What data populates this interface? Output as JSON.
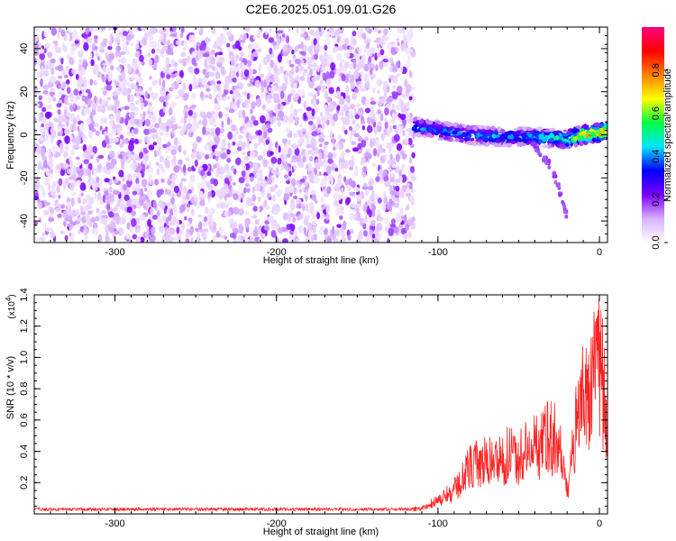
{
  "figure_title": "C2E6.2025.051.09.01.G26",
  "chart_data": [
    {
      "type": "heatmap",
      "title": "C2E6.2025.051.09.01.G26",
      "xlabel": "Height of straight line (km)",
      "ylabel": "Frequency (Hz)",
      "xlim": [
        -350,
        5
      ],
      "ylim": [
        -50,
        50
      ],
      "x_ticks": [
        -300,
        -200,
        -100,
        0
      ],
      "y_ticks": [
        -40,
        -20,
        0,
        20,
        40
      ],
      "noise_region_x": [
        -350,
        -115
      ],
      "signal_track": {
        "x": [
          -115,
          -100,
          -80,
          -60,
          -40,
          -20,
          -10,
          0,
          5
        ],
        "frequency": [
          4,
          2,
          0,
          -1,
          -1,
          -2,
          0,
          1,
          2
        ],
        "peak_amplitude": [
          0.45,
          0.45,
          0.45,
          0.45,
          0.5,
          0.6,
          0.85,
          0.95,
          0.95
        ]
      },
      "faint_branch": {
        "x": [
          -40,
          -30,
          -25,
          -20
        ],
        "frequency": [
          -6,
          -15,
          -25,
          -38
        ]
      },
      "colorbar": {
        "label": "Normalized spectral amplitude",
        "range": [
          0,
          1
        ],
        "ticks": [
          "0.0",
          "0.2",
          "0.4",
          "0.6",
          "0.8"
        ],
        "colors": [
          "#ffffff",
          "#d8b0ff",
          "#7a00ff",
          "#0000ff",
          "#00e5ff",
          "#00ff40",
          "#ffff00",
          "#ff8000",
          "#ff0000",
          "#ff0080"
        ]
      },
      "grid": false
    },
    {
      "type": "line",
      "xlabel": "Height of straight line (km)",
      "ylabel": "SNR (10 * v/v)",
      "y_multiplier_label": "(x10^4)",
      "xlim": [
        -350,
        5
      ],
      "ylim": [
        0,
        1.4
      ],
      "x_ticks": [
        -300,
        -200,
        -100,
        0
      ],
      "y_ticks": [
        0.2,
        0.4,
        0.6,
        0.8,
        1.0,
        1.2,
        1.4
      ],
      "line_color": "#ff2020",
      "envelope": {
        "x": [
          -350,
          -120,
          -110,
          -100,
          -90,
          -80,
          -70,
          -60,
          -50,
          -40,
          -30,
          -25,
          -20,
          -18,
          -15,
          -10,
          -5,
          0,
          3,
          5
        ],
        "y": [
          0.03,
          0.04,
          0.05,
          0.12,
          0.2,
          0.42,
          0.45,
          0.5,
          0.52,
          0.58,
          0.7,
          0.6,
          0.18,
          0.4,
          0.75,
          1.0,
          1.15,
          1.3,
          1.1,
          0.7
        ]
      },
      "grid": false
    }
  ]
}
